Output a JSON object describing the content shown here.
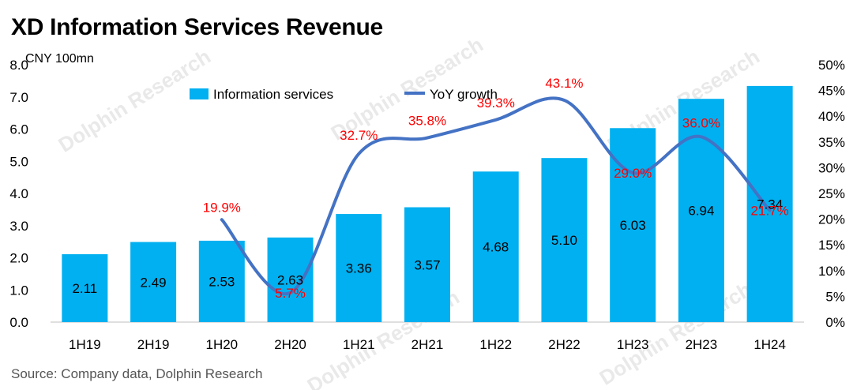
{
  "title": "XD Information Services Revenue",
  "source": "Source: Company data, Dolphin Research",
  "watermark": "Dolphin Research",
  "colors": {
    "bar": "#00b0f0",
    "line": "#4472c4",
    "growth_label": "#ff0000",
    "axis_text": "#000000"
  },
  "chart_data": {
    "type": "bar",
    "categories": [
      "1H19",
      "2H19",
      "1H20",
      "2H20",
      "1H21",
      "2H21",
      "1H22",
      "2H22",
      "1H23",
      "2H23",
      "1H24"
    ],
    "series": [
      {
        "name": "Information services",
        "type": "bar",
        "axis": "left",
        "values": [
          2.11,
          2.49,
          2.53,
          2.63,
          3.36,
          3.57,
          4.68,
          5.1,
          6.03,
          6.94,
          7.34
        ],
        "labels": [
          "2.11",
          "2.49",
          "2.53",
          "2.63",
          "3.36",
          "3.57",
          "4.68",
          "5.10",
          "6.03",
          "6.94",
          "7.34"
        ]
      },
      {
        "name": "YoY growth",
        "type": "line",
        "axis": "right",
        "values": [
          null,
          null,
          19.9,
          5.7,
          32.7,
          35.8,
          39.3,
          43.1,
          29.0,
          36.0,
          21.7
        ],
        "labels": [
          null,
          null,
          "19.9%",
          "5.7%",
          "32.7%",
          "35.8%",
          "39.3%",
          "43.1%",
          "29.0%",
          "36.0%",
          "21.7%"
        ]
      }
    ],
    "y_left": {
      "label": "CNY 100mn",
      "min": 0,
      "max": 8,
      "ticks": [
        "0.0",
        "1.0",
        "2.0",
        "3.0",
        "4.0",
        "5.0",
        "6.0",
        "7.0",
        "8.0"
      ]
    },
    "y_right": {
      "min": 0,
      "max": 50,
      "ticks": [
        "0%",
        "5%",
        "10%",
        "15%",
        "20%",
        "25%",
        "30%",
        "35%",
        "40%",
        "45%",
        "50%"
      ]
    },
    "legend": {
      "position": "top",
      "items": [
        "Information services",
        "YoY growth"
      ]
    }
  }
}
